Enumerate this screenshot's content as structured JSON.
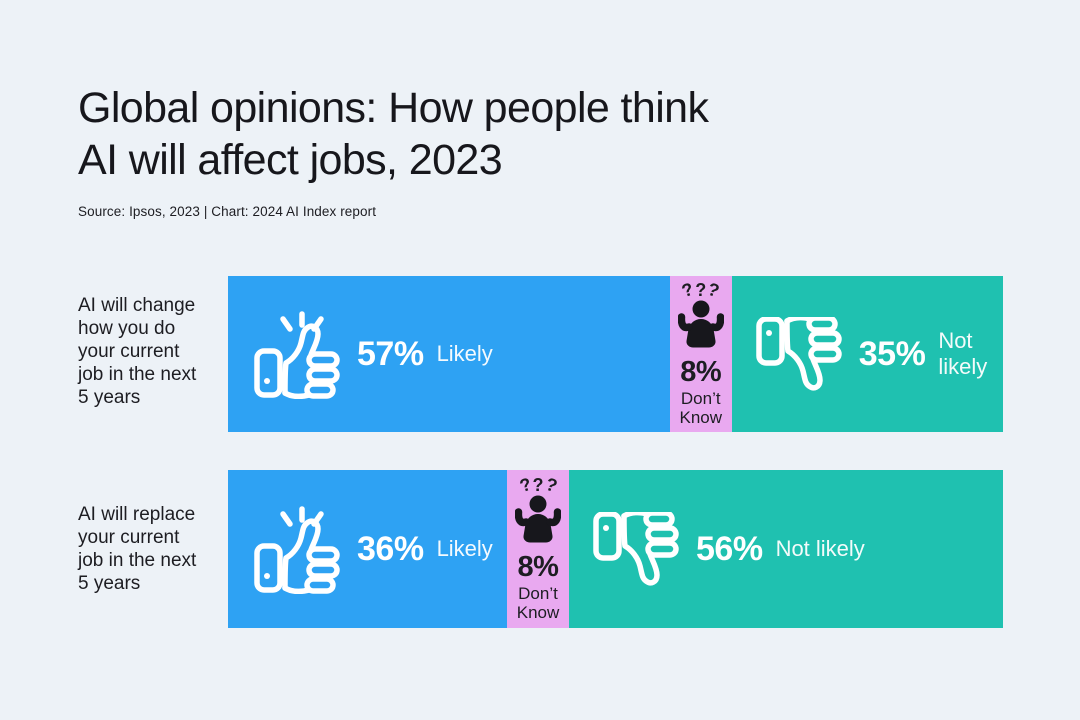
{
  "page": {
    "background": "#edf2f7"
  },
  "header": {
    "title_line1": "Global opinions: How people think",
    "title_line2": "AI will affect jobs, 2023",
    "source": "Source: Ipsos, 2023 | Chart: 2024 AI Index report"
  },
  "colors": {
    "likely": "#2ea2f3",
    "dont_know": "#e9a9f0",
    "not_likely": "#1fc1b0",
    "background": "#edf2f7",
    "dark_text": "#17171c",
    "bar_text": "#ffffff"
  },
  "chart_data": {
    "type": "bar",
    "subtype": "horizontal-stacked",
    "unit": "percent",
    "title": "Global opinions: How people think AI will affect jobs, 2023",
    "source": "Source: Ipsos, 2023 | Chart: 2024 AI Index report",
    "categories": [
      "AI will change how you do your current job in the next 5 years",
      "AI will replace your current job in the next 5 years"
    ],
    "series": [
      {
        "name": "Likely",
        "color": "#2ea2f3",
        "values": [
          57,
          36
        ]
      },
      {
        "name": "Don't Know",
        "color": "#e9a9f0",
        "values": [
          8,
          8
        ]
      },
      {
        "name": "Not likely",
        "color": "#1fc1b0",
        "values": [
          35,
          56
        ]
      }
    ],
    "xlim": [
      0,
      100
    ],
    "grid": false,
    "legend": "inline-in-bars"
  },
  "rows": [
    {
      "label_lines": [
        "AI will change",
        "how you do",
        "your current",
        "job in the next",
        "5 years"
      ],
      "likely_width": 57,
      "dontknow_width": 8,
      "notlikely_width": 35,
      "likely_pct": "57%",
      "likely_label": "Likely",
      "marks": [
        "?",
        "?",
        "?"
      ],
      "dontknow_pct": "8%",
      "dontknow_line1": "Don’t",
      "dontknow_line2": "Know",
      "notlikely_pct": "35%",
      "notlikely_label": "Not likely"
    },
    {
      "label_lines": [
        "AI will replace",
        "your current",
        "job in the next",
        "5 years"
      ],
      "likely_width": 36,
      "dontknow_width": 8,
      "notlikely_width": 56,
      "likely_pct": "36%",
      "likely_label": "Likely",
      "marks": [
        "?",
        "?",
        "?"
      ],
      "dontknow_pct": "8%",
      "dontknow_line1": "Don’t",
      "dontknow_line2": "Know",
      "notlikely_pct": "56%",
      "notlikely_label": "Not likely"
    }
  ]
}
